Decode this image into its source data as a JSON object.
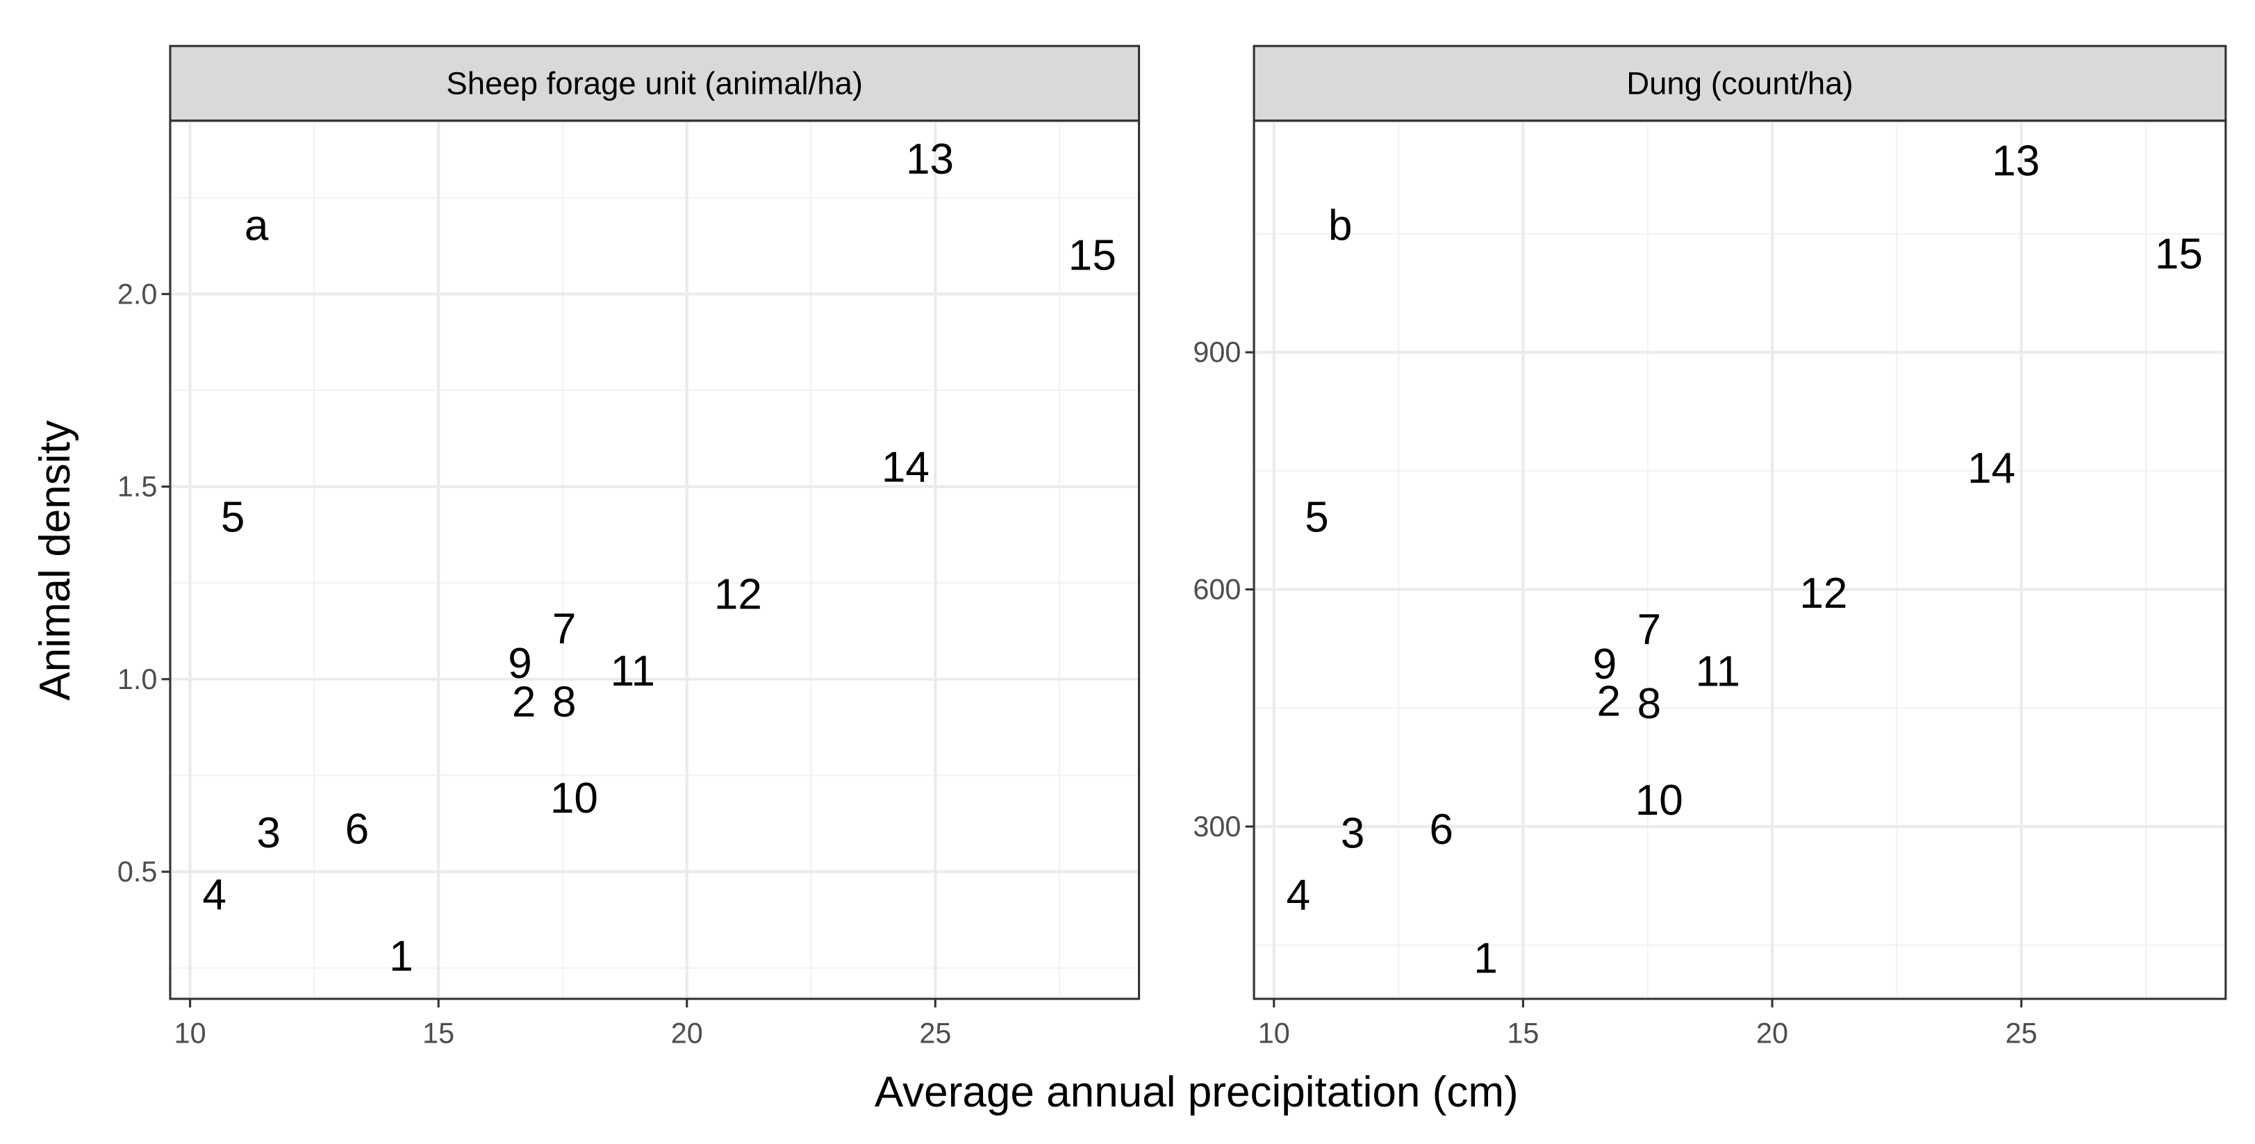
{
  "axis_labels": {
    "x": "Average annual precipitation (cm)",
    "y": "Animal density"
  },
  "chart_data": [
    {
      "type": "scatter",
      "title": "Sheep forage unit (animal/ha)",
      "annotation": "a",
      "labels": [
        "1",
        "2",
        "3",
        "4",
        "5",
        "6",
        "7",
        "8",
        "9",
        "10",
        "11",
        "12",
        "13",
        "14",
        "15"
      ],
      "x": [
        14.25,
        16.72,
        11.58,
        10.49,
        10.86,
        13.36,
        17.53,
        17.53,
        16.64,
        17.73,
        18.91,
        21.03,
        24.89,
        24.4,
        28.16
      ],
      "values": [
        0.28,
        0.94,
        0.6,
        0.44,
        1.42,
        0.61,
        1.13,
        0.94,
        1.04,
        0.69,
        1.02,
        1.22,
        2.35,
        1.55,
        2.1
      ],
      "xlim": [
        9.6,
        29.1
      ],
      "xticks": [
        10,
        15,
        20,
        25
      ],
      "x_minor_ticks": [
        12.5,
        17.5,
        22.5,
        27.5
      ],
      "ylim": [
        0.17,
        2.45
      ],
      "yticks": [
        {
          "value": 0.5,
          "label": "0.5"
        },
        {
          "value": 1,
          "label": "1.0"
        },
        {
          "value": 1.5,
          "label": "1.5"
        },
        {
          "value": 2,
          "label": "2.0"
        }
      ],
      "y_minor_ticks": [
        0.25,
        0.75,
        1.25,
        1.75,
        2.25
      ],
      "grid": true
    },
    {
      "type": "scatter",
      "title": "Dung (count/ha)",
      "annotation": "b",
      "labels": [
        "1",
        "2",
        "3",
        "4",
        "5",
        "6",
        "7",
        "8",
        "9",
        "10",
        "11",
        "12",
        "13",
        "14",
        "15"
      ],
      "x": [
        14.25,
        16.72,
        11.58,
        10.49,
        10.86,
        13.36,
        17.53,
        17.53,
        16.64,
        17.73,
        18.91,
        21.03,
        24.89,
        24.4,
        28.16
      ],
      "values": [
        133,
        458,
        291,
        213,
        691,
        296,
        549,
        455,
        505,
        333,
        496,
        595,
        1142,
        753,
        1024
      ],
      "xlim": [
        9.6,
        29.1
      ],
      "xticks": [
        10,
        15,
        20,
        25
      ],
      "x_minor_ticks": [
        12.5,
        17.5,
        22.5,
        27.5
      ],
      "ylim": [
        82,
        1193
      ],
      "yticks": [
        300,
        600,
        900
      ],
      "y_minor_ticks": [
        150,
        450,
        750,
        1050
      ],
      "grid": true
    }
  ]
}
